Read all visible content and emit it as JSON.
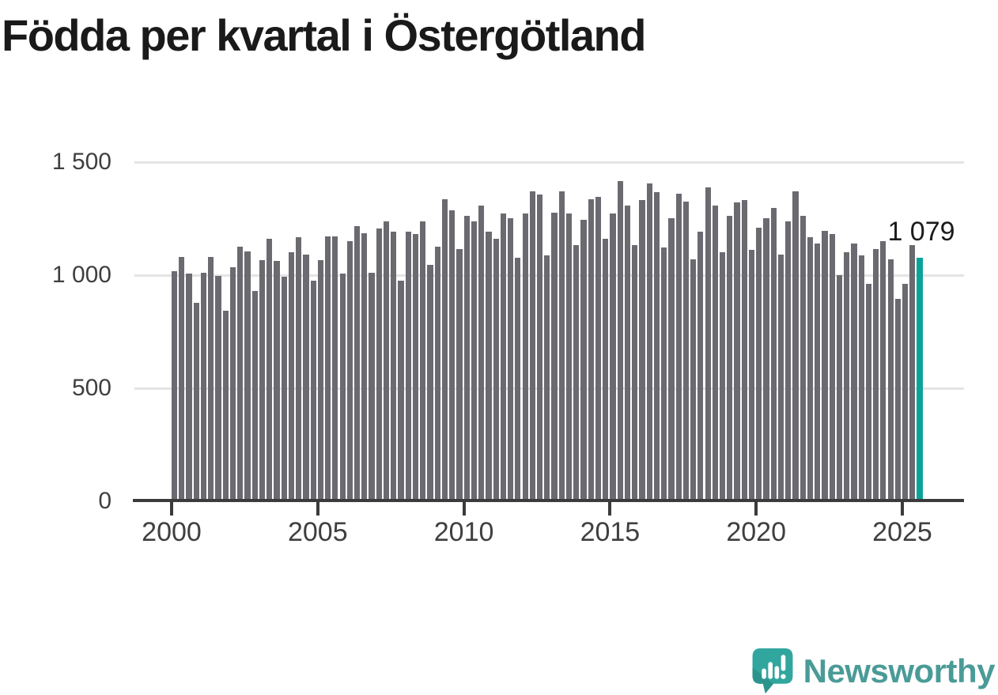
{
  "title": "Födda per kvartal i Östergötland",
  "chart_data": {
    "type": "bar",
    "title": "Födda per kvartal i Östergötland",
    "x_unit": "quarter",
    "start": "2000Q1",
    "end": "2025Q3",
    "grid": "horizontal",
    "legend": "none",
    "ylim": [
      0,
      1500
    ],
    "yticks": [
      0,
      500,
      1000,
      1500
    ],
    "ytick_labels": [
      "0",
      "500",
      "1 000",
      "1 500"
    ],
    "xticks": [
      2000,
      2005,
      2010,
      2015,
      2020,
      2025
    ],
    "xtick_labels": [
      "2000",
      "2005",
      "2010",
      "2015",
      "2020",
      "2025"
    ],
    "bar_color": "#6b6a70",
    "highlight_color": "#0aa39a",
    "highlight_index": 102,
    "annotation": {
      "text": "1 079",
      "value": 1079,
      "target": "last-bar"
    },
    "categories": [
      "2000Q1",
      "2000Q2",
      "2000Q3",
      "2000Q4",
      "2001Q1",
      "2001Q2",
      "2001Q3",
      "2001Q4",
      "2002Q1",
      "2002Q2",
      "2002Q3",
      "2002Q4",
      "2003Q1",
      "2003Q2",
      "2003Q3",
      "2003Q4",
      "2004Q1",
      "2004Q2",
      "2004Q3",
      "2004Q4",
      "2005Q1",
      "2005Q2",
      "2005Q3",
      "2005Q4",
      "2006Q1",
      "2006Q2",
      "2006Q3",
      "2006Q4",
      "2007Q1",
      "2007Q2",
      "2007Q3",
      "2007Q4",
      "2008Q1",
      "2008Q2",
      "2008Q3",
      "2008Q4",
      "2009Q1",
      "2009Q2",
      "2009Q3",
      "2009Q4",
      "2010Q1",
      "2010Q2",
      "2010Q3",
      "2010Q4",
      "2011Q1",
      "2011Q2",
      "2011Q3",
      "2011Q4",
      "2012Q1",
      "2012Q2",
      "2012Q3",
      "2012Q4",
      "2013Q1",
      "2013Q2",
      "2013Q3",
      "2013Q4",
      "2014Q1",
      "2014Q2",
      "2014Q3",
      "2014Q4",
      "2015Q1",
      "2015Q2",
      "2015Q3",
      "2015Q4",
      "2016Q1",
      "2016Q2",
      "2016Q3",
      "2016Q4",
      "2017Q1",
      "2017Q2",
      "2017Q3",
      "2017Q4",
      "2018Q1",
      "2018Q2",
      "2018Q3",
      "2018Q4",
      "2019Q1",
      "2019Q2",
      "2019Q3",
      "2019Q4",
      "2020Q1",
      "2020Q2",
      "2020Q3",
      "2020Q4",
      "2021Q1",
      "2021Q2",
      "2021Q3",
      "2021Q4",
      "2022Q1",
      "2022Q2",
      "2022Q3",
      "2022Q4",
      "2023Q1",
      "2023Q2",
      "2023Q3",
      "2023Q4",
      "2024Q1",
      "2024Q2",
      "2024Q3",
      "2024Q4",
      "2025Q1",
      "2025Q2",
      "2025Q3"
    ],
    "values": [
      1020,
      1085,
      1010,
      880,
      1015,
      1085,
      1000,
      845,
      1040,
      1130,
      1110,
      935,
      1070,
      1165,
      1065,
      995,
      1105,
      1170,
      1095,
      980,
      1070,
      1175,
      1175,
      1010,
      1155,
      1220,
      1190,
      1015,
      1210,
      1240,
      1195,
      980,
      1195,
      1185,
      1240,
      1050,
      1130,
      1340,
      1290,
      1120,
      1265,
      1240,
      1310,
      1195,
      1165,
      1275,
      1255,
      1080,
      1275,
      1375,
      1360,
      1090,
      1280,
      1375,
      1275,
      1135,
      1250,
      1340,
      1350,
      1165,
      1275,
      1420,
      1310,
      1135,
      1335,
      1410,
      1370,
      1125,
      1255,
      1365,
      1330,
      1075,
      1195,
      1390,
      1310,
      1105,
      1265,
      1325,
      1335,
      1115,
      1215,
      1255,
      1300,
      1095,
      1240,
      1375,
      1265,
      1170,
      1145,
      1200,
      1185,
      1005,
      1105,
      1145,
      1090,
      965,
      1120,
      1155,
      1075,
      900,
      965,
      1135,
      1079
    ]
  },
  "branding": {
    "logo_text": "Newsworthy",
    "logo_text_color": "#4a9b97",
    "icon_color": "#31a69e",
    "icon_shade_color": "#2a948c"
  }
}
